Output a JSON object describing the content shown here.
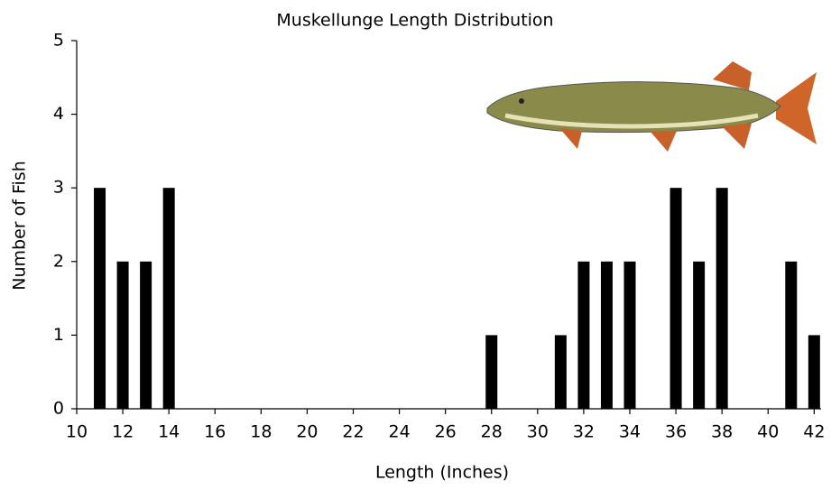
{
  "chart_data": {
    "type": "bar",
    "title": "Muskellunge Length Distribution",
    "x_label": "Length (Inches)",
    "y_label": "Number of Fish",
    "x": [
      11,
      12,
      13,
      14,
      28,
      31,
      32,
      33,
      34,
      36,
      37,
      38,
      41,
      42
    ],
    "values": [
      3,
      2,
      2,
      3,
      1,
      1,
      2,
      2,
      2,
      3,
      2,
      3,
      2,
      1
    ],
    "color": "#000000",
    "xlim": [
      10,
      42.3
    ],
    "xticks": [
      10,
      12,
      14,
      16,
      18,
      20,
      22,
      24,
      26,
      28,
      30,
      32,
      34,
      36,
      38,
      40,
      42
    ],
    "ylim": [
      0,
      5
    ],
    "yticks": [
      0,
      1,
      2,
      3,
      4,
      5
    ],
    "grid": false
  }
}
